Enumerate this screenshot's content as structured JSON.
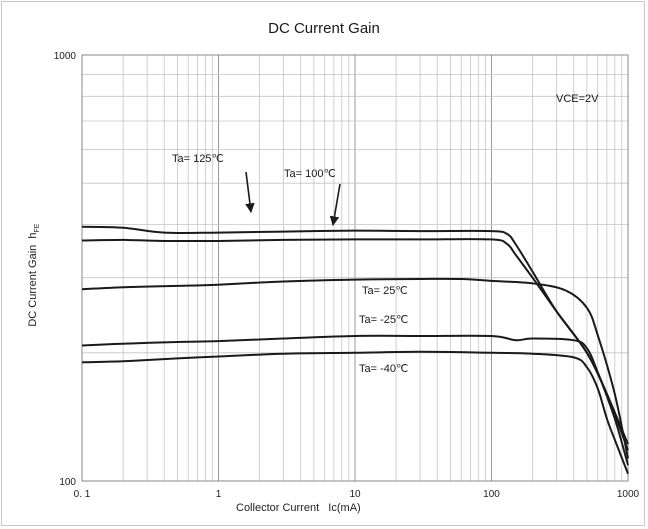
{
  "chart_data": {
    "type": "line",
    "title": "DC Current Gain",
    "xlabel": "Collector Current   Ic(mA)",
    "ylabel": "DC Current Gain  h",
    "ylabel_sub": "FE",
    "x_scale": "log",
    "y_scale": "log",
    "xlim": [
      0.1,
      1000
    ],
    "ylim": [
      100,
      1000
    ],
    "x_ticks": [
      "0. 1",
      "1",
      "10",
      "100",
      "1000"
    ],
    "y_ticks": [
      "100",
      "1000"
    ],
    "grid": true,
    "annotation": "VCE=2V",
    "line_color": "#1a1a1a",
    "series": [
      {
        "name": "Ta= 125℃",
        "x": [
          0.1,
          0.2,
          0.4,
          1,
          3,
          10,
          30,
          100,
          130,
          150,
          200,
          300,
          500,
          700,
          1000
        ],
        "y": [
          395,
          393,
          383,
          383,
          385,
          387,
          386,
          386,
          380,
          360,
          310,
          250,
          200,
          160,
          122
        ]
      },
      {
        "name": "Ta= 100℃",
        "x": [
          0.1,
          0.2,
          0.4,
          1,
          3,
          10,
          30,
          100,
          130,
          150,
          200,
          300,
          500,
          700,
          1000
        ],
        "y": [
          367,
          368,
          366,
          366,
          368,
          369,
          369,
          369,
          360,
          340,
          300,
          250,
          200,
          160,
          118
        ]
      },
      {
        "name": "Ta= 25℃",
        "x": [
          0.1,
          0.2,
          0.5,
          1,
          3,
          10,
          30,
          60,
          100,
          200,
          350,
          500,
          600,
          800,
          1000
        ],
        "y": [
          282,
          285,
          287,
          289,
          294,
          297,
          298,
          298,
          295,
          291,
          280,
          255,
          220,
          160,
          113
        ]
      },
      {
        "name": "Ta= -25℃",
        "x": [
          0.1,
          0.2,
          0.5,
          1,
          3,
          10,
          30,
          100,
          150,
          200,
          400,
          500,
          600,
          800,
          1000
        ],
        "y": [
          208,
          210,
          212,
          213,
          216,
          219,
          219,
          219,
          214,
          216,
          214,
          205,
          180,
          140,
          109
        ]
      },
      {
        "name": "Ta= -40℃",
        "x": [
          0.1,
          0.2,
          0.5,
          1,
          3,
          10,
          30,
          100,
          200,
          400,
          500,
          600,
          700,
          800,
          1000
        ],
        "y": [
          190,
          191,
          194,
          196,
          199,
          200,
          201,
          200,
          199,
          195,
          185,
          165,
          140,
          125,
          104
        ]
      }
    ],
    "series_label_text": [
      "Ta= 125℃",
      "Ta= 100℃",
      "Ta= 25℃",
      "Ta= -25℃",
      "Ta= -40℃"
    ]
  }
}
